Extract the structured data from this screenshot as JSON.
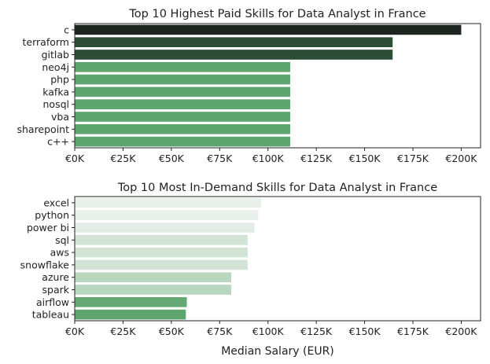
{
  "chart_data": [
    {
      "type": "bar",
      "orientation": "horizontal",
      "title": "Top 10 Highest Paid Skills for Data Analyst in France",
      "xlabel": "",
      "ylabel": "",
      "categories": [
        "c",
        "terraform",
        "gitlab",
        "neo4j",
        "php",
        "kafka",
        "nosql",
        "vba",
        "sharepoint",
        "c++"
      ],
      "values": [
        200000,
        164500,
        164500,
        111500,
        111500,
        111500,
        111500,
        111500,
        111500,
        111500
      ],
      "colors": [
        "#1e2420",
        "#2e4d36",
        "#2e4d36",
        "#5ea56f",
        "#5ea56f",
        "#5ea56f",
        "#5ea56f",
        "#5ea56f",
        "#5ea56f",
        "#5ea56f"
      ],
      "xlim": [
        0,
        210000
      ],
      "xticks": [
        0,
        25000,
        50000,
        75000,
        100000,
        125000,
        150000,
        175000,
        200000
      ],
      "xticklabels": [
        "€0K",
        "€25K",
        "€50K",
        "€75K",
        "€100K",
        "€125K",
        "€150K",
        "€175K",
        "€200K"
      ],
      "grid": false,
      "legend": false
    },
    {
      "type": "bar",
      "orientation": "horizontal",
      "title": "Top 10 Most In-Demand Skills for Data Analyst in France",
      "xlabel": "Median Salary (EUR)",
      "ylabel": "",
      "categories": [
        "excel",
        "python",
        "power bi",
        "sql",
        "aws",
        "snowflake",
        "azure",
        "spark",
        "airflow",
        "tableau"
      ],
      "values": [
        96500,
        95000,
        93000,
        89500,
        89500,
        89500,
        81000,
        81000,
        58000,
        57500
      ],
      "colors": [
        "#e9efea",
        "#e9efea",
        "#e4ece6",
        "#d3e4d7",
        "#d3e4d7",
        "#d3e4d7",
        "#b9d6bf",
        "#b9d6bf",
        "#64a873",
        "#5ea56f"
      ],
      "xlim": [
        0,
        210000
      ],
      "xticks": [
        0,
        25000,
        50000,
        75000,
        100000,
        125000,
        150000,
        175000,
        200000
      ],
      "xticklabels": [
        "€0K",
        "€25K",
        "€50K",
        "€75K",
        "€100K",
        "€125K",
        "€150K",
        "€175K",
        "€200K"
      ],
      "grid": false,
      "legend": false
    }
  ]
}
